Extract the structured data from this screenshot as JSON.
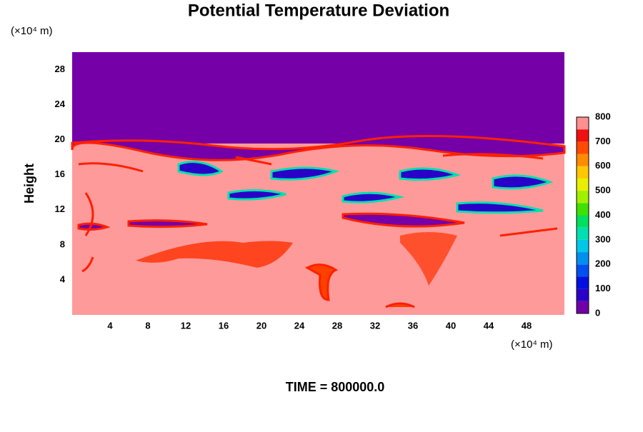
{
  "chart_data": {
    "type": "contour",
    "title": "Potential Temperature Deviation",
    "y_label": "Height",
    "y_unit_label": "(×10⁴ m)",
    "x_unit_label": "(×10⁴ m)",
    "footer": "TIME = 800000.0",
    "xlim": [
      0,
      52
    ],
    "xticks": [
      4,
      8,
      12,
      16,
      20,
      24,
      28,
      32,
      36,
      40,
      44,
      48
    ],
    "ylim": [
      0,
      30
    ],
    "yticks": [
      4,
      8,
      12,
      16,
      20,
      24,
      28
    ],
    "grid": false,
    "colorbar": {
      "clim": [
        0,
        800
      ],
      "ticks": [
        0,
        100,
        200,
        300,
        400,
        500,
        600,
        700,
        800
      ],
      "levels": [
        0,
        50,
        100,
        150,
        200,
        250,
        300,
        350,
        400,
        450,
        500,
        550,
        600,
        650,
        700,
        750,
        800
      ],
      "colors": [
        "#7200a8",
        "#2a00c8",
        "#0010e0",
        "#0050f0",
        "#0090f0",
        "#00c8e8",
        "#00e0b0",
        "#00e060",
        "#40e000",
        "#a0f000",
        "#e8f000",
        "#ffc800",
        "#ff8c00",
        "#ff4a00",
        "#f01010",
        "#ff9090"
      ]
    }
  }
}
